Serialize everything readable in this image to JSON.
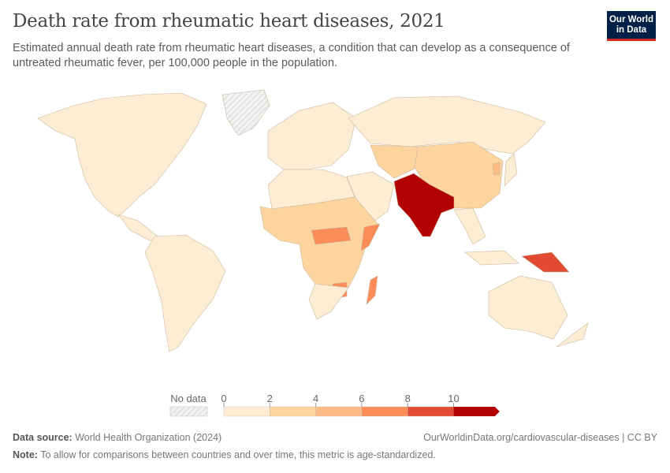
{
  "header": {
    "title": "Death rate from rheumatic heart diseases, 2021",
    "subtitle": "Estimated annual death rate from rheumatic heart diseases, a condition that can develop as a consequence of untreated rheumatic fever, per 100,000 people in the population.",
    "logo": "Our World in Data"
  },
  "chart_data": {
    "type": "map",
    "title": "Death rate from rheumatic heart diseases, 2021",
    "legend": {
      "no_data_label": "No data",
      "no_data_color": "#e6e6e6",
      "ticks": [
        "0",
        "2",
        "4",
        "6",
        "8",
        "10"
      ],
      "bins": [
        {
          "from": 0,
          "to": 2,
          "color": "#feedd5"
        },
        {
          "from": 2,
          "to": 4,
          "color": "#fdd49e"
        },
        {
          "from": 4,
          "to": 6,
          "color": "#fdbb84"
        },
        {
          "from": 6,
          "to": 8,
          "color": "#fc8d59"
        },
        {
          "from": 8,
          "to": 10,
          "color": "#e34a33"
        },
        {
          "from": 10,
          "to": null,
          "color": "#b30000"
        }
      ]
    },
    "regions": [
      {
        "name": "North America",
        "value": 1
      },
      {
        "name": "Greenland",
        "value": null
      },
      {
        "name": "Central America",
        "value": 1
      },
      {
        "name": "South America",
        "value": 1
      },
      {
        "name": "Europe",
        "value": 1
      },
      {
        "name": "Russia",
        "value": 1
      },
      {
        "name": "Central Asia",
        "value": 3
      },
      {
        "name": "Middle East",
        "value": 1
      },
      {
        "name": "China",
        "value": 3
      },
      {
        "name": "South Asia",
        "value": 11
      },
      {
        "name": "Southeast Asia",
        "value": 1.5
      },
      {
        "name": "Indonesia",
        "value": 1.5
      },
      {
        "name": "Papua New Guinea",
        "value": 9
      },
      {
        "name": "Australia",
        "value": 1
      },
      {
        "name": "New Zealand",
        "value": 1
      },
      {
        "name": "Japan",
        "value": 1
      },
      {
        "name": "North Africa",
        "value": 1
      },
      {
        "name": "Sub-Saharan Africa",
        "value": 3
      },
      {
        "name": "Central African belt",
        "value": 6.5
      },
      {
        "name": "Somalia",
        "value": 7
      },
      {
        "name": "Zimbabwe",
        "value": 7
      },
      {
        "name": "Madagascar",
        "value": 7
      },
      {
        "name": "Southern Africa",
        "value": 1.5
      },
      {
        "name": "Korea",
        "value": 5
      }
    ]
  },
  "footer": {
    "source_label": "Data source:",
    "source": "World Health Organization (2024)",
    "url": "OurWorldinData.org/cardiovascular-diseases | CC BY",
    "note_label": "Note:",
    "note": "To allow for comparisons between countries and over time, this metric is age-standardized."
  }
}
